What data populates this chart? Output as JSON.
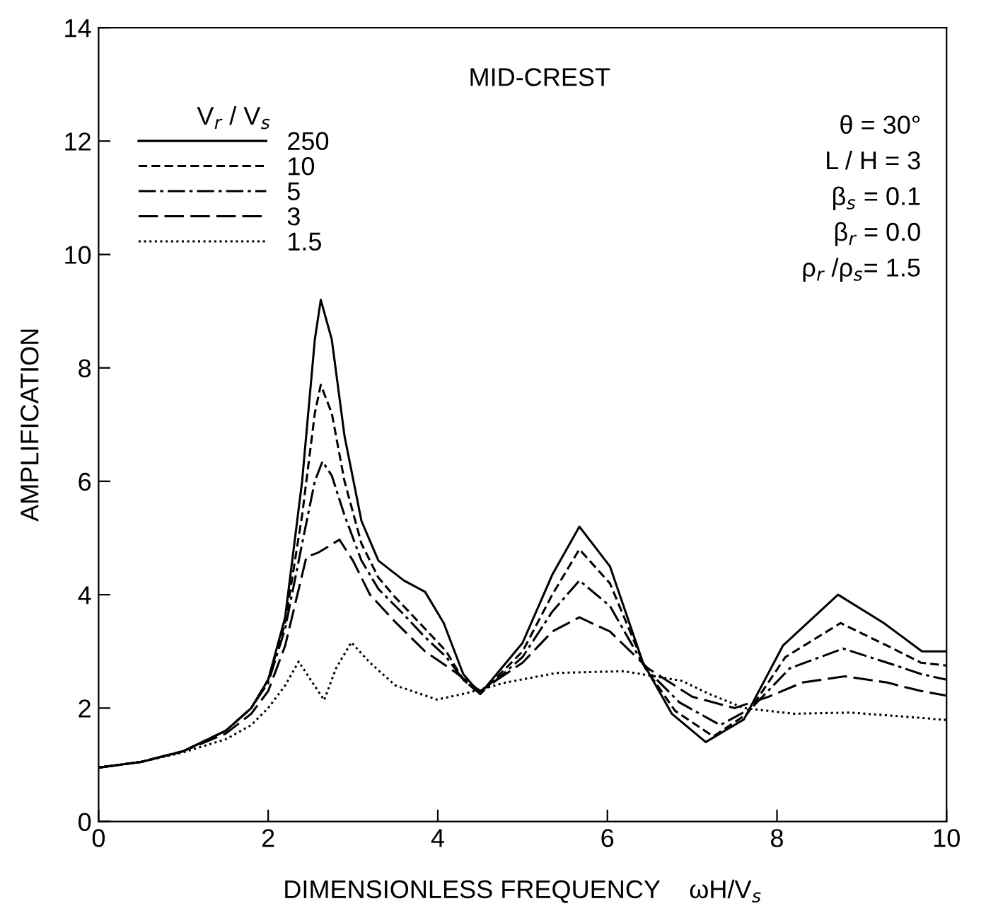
{
  "chart_data": {
    "type": "line",
    "xlabel": "DIMENSIONLESS FREQUENCY    ωH/V$_{s}$",
    "ylabel": "AMPLIFICATION",
    "legend_title": "V$_{r}$ / V$_{s}$",
    "legend": "top left",
    "grid": false,
    "marker": "none",
    "xlim": [
      0,
      10
    ],
    "xticks": [
      0,
      2,
      4,
      6,
      8,
      10
    ],
    "ylim": [
      0,
      14
    ],
    "yticks": [
      0,
      2,
      4,
      6,
      8,
      10,
      12,
      14
    ],
    "annotations": [
      "MID-CREST",
      "θ = 30°",
      "L / H = 3",
      "β$_{s}$ = 0.1",
      "β$_{r}$ = 0.0",
      "ρ$_{r}$ /ρ$_{s}$= 1.5"
    ],
    "series": [
      {
        "name": "250",
        "color": "#000000",
        "line_style": "solid",
        "x": [
          0,
          0.5,
          1,
          1.5,
          1.8,
          2.0,
          2.2,
          2.4,
          2.55,
          2.62,
          2.75,
          2.9,
          3.1,
          3.3,
          3.6,
          3.85,
          4.07,
          4.3,
          4.5,
          5.0,
          5.35,
          5.67,
          6.03,
          6.42,
          6.76,
          7.16,
          7.61,
          8.07,
          8.72,
          9.26,
          9.71,
          10
        ],
        "values": [
          0.95,
          1.05,
          1.24,
          1.6,
          2.0,
          2.5,
          3.6,
          6.0,
          8.5,
          9.2,
          8.5,
          6.8,
          5.3,
          4.6,
          4.25,
          4.05,
          3.5,
          2.6,
          2.25,
          3.15,
          4.35,
          5.2,
          4.5,
          2.8,
          1.9,
          1.4,
          1.8,
          3.1,
          4.0,
          3.5,
          3.0,
          3.0
        ]
      },
      {
        "name": "10",
        "color": "#000000",
        "line_style": "dashed",
        "x": [
          0,
          0.5,
          1,
          1.5,
          1.8,
          2.0,
          2.2,
          2.4,
          2.55,
          2.62,
          2.75,
          2.9,
          3.1,
          3.3,
          3.5,
          3.85,
          4.1,
          4.3,
          4.5,
          5.0,
          5.35,
          5.67,
          6.03,
          6.45,
          6.8,
          7.25,
          7.65,
          8.1,
          8.75,
          9.3,
          9.7,
          10
        ],
        "values": [
          0.95,
          1.05,
          1.24,
          1.6,
          2.0,
          2.5,
          3.5,
          5.4,
          7.2,
          7.7,
          7.2,
          6.0,
          4.9,
          4.3,
          3.95,
          3.4,
          3.0,
          2.5,
          2.25,
          3.0,
          4.0,
          4.8,
          4.2,
          2.7,
          1.95,
          1.5,
          1.9,
          2.9,
          3.5,
          3.1,
          2.8,
          2.75
        ]
      },
      {
        "name": "5",
        "color": "#000000",
        "line_style": "dashdot",
        "x": [
          0,
          0.5,
          1,
          1.5,
          1.8,
          2.0,
          2.2,
          2.4,
          2.55,
          2.64,
          2.75,
          2.9,
          3.1,
          3.3,
          3.6,
          3.85,
          4.1,
          4.3,
          4.5,
          5.0,
          5.35,
          5.67,
          6.03,
          6.45,
          6.85,
          7.33,
          7.7,
          8.15,
          8.78,
          9.3,
          9.7,
          10
        ],
        "values": [
          0.95,
          1.05,
          1.24,
          1.6,
          2.0,
          2.45,
          3.4,
          4.9,
          6.0,
          6.35,
          6.1,
          5.4,
          4.6,
          4.1,
          3.65,
          3.25,
          2.9,
          2.5,
          2.25,
          2.9,
          3.7,
          4.25,
          3.8,
          2.7,
          2.1,
          1.7,
          2.0,
          2.7,
          3.05,
          2.8,
          2.6,
          2.5
        ]
      },
      {
        "name": "3",
        "color": "#000000",
        "line_style": "longdash",
        "x": [
          0,
          0.5,
          1,
          1.5,
          1.8,
          2.0,
          2.2,
          2.45,
          2.6,
          2.84,
          3.0,
          3.2,
          3.51,
          3.85,
          4.19,
          4.5,
          5.0,
          5.35,
          5.67,
          6.03,
          6.48,
          7.0,
          7.5,
          7.9,
          8.3,
          8.8,
          9.3,
          9.7,
          10
        ],
        "values": [
          0.95,
          1.05,
          1.24,
          1.55,
          1.9,
          2.3,
          3.1,
          4.66,
          4.75,
          4.97,
          4.6,
          4.0,
          3.5,
          3.0,
          2.65,
          2.3,
          2.8,
          3.35,
          3.6,
          3.35,
          2.7,
          2.2,
          2.0,
          2.2,
          2.45,
          2.56,
          2.45,
          2.3,
          2.22
        ]
      },
      {
        "name": "1.5",
        "color": "#000000",
        "line_style": "dotted",
        "x": [
          0,
          0.5,
          1,
          1.5,
          1.8,
          2.0,
          2.2,
          2.36,
          2.5,
          2.66,
          2.8,
          2.98,
          3.2,
          3.5,
          3.99,
          4.33,
          4.8,
          5.4,
          6.2,
          6.88,
          7.2,
          7.61,
          8.2,
          8.86,
          9.5,
          10
        ],
        "values": [
          0.95,
          1.05,
          1.22,
          1.45,
          1.7,
          2.0,
          2.4,
          2.82,
          2.5,
          2.14,
          2.7,
          3.16,
          2.8,
          2.4,
          2.15,
          2.26,
          2.45,
          2.62,
          2.65,
          2.48,
          2.25,
          2.0,
          1.9,
          1.92,
          1.85,
          1.79
        ]
      }
    ]
  }
}
